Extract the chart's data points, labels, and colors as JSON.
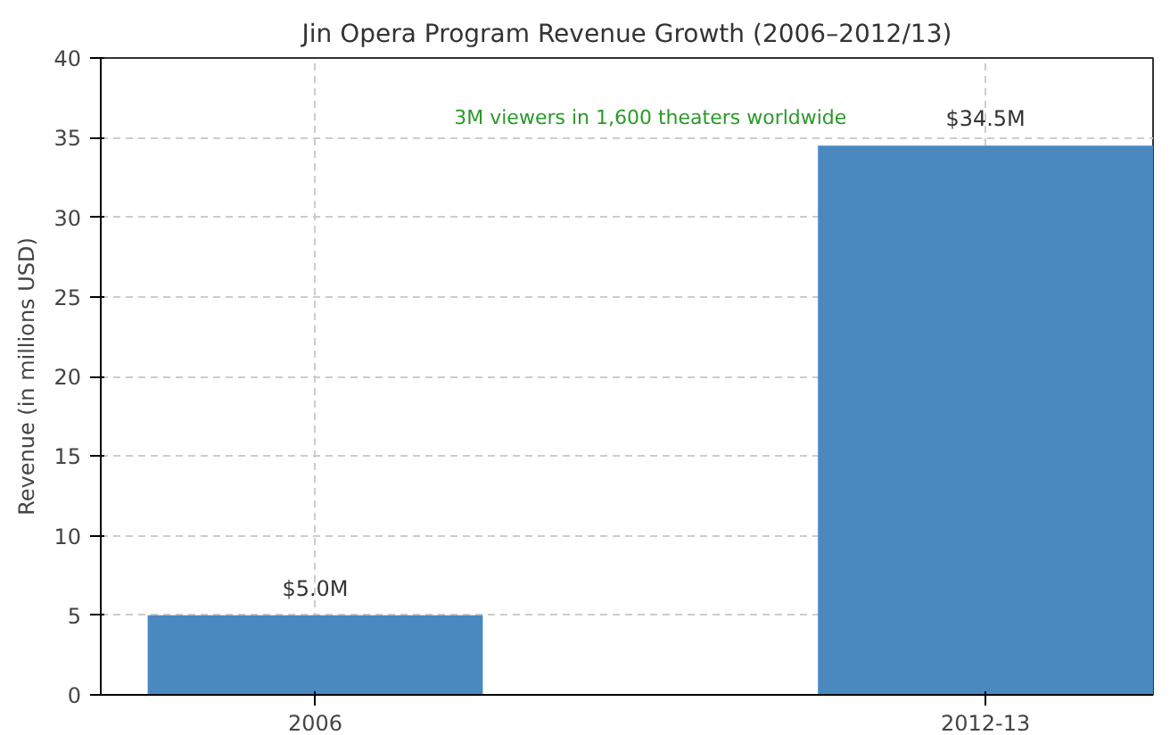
{
  "chart_data": {
    "type": "bar",
    "title": "Jin Opera Program Revenue Growth (2006–2012/13)",
    "ylabel": "Revenue (in millions USD)",
    "categories": [
      "2006",
      "2012-13"
    ],
    "values": [
      5.0,
      34.5
    ],
    "color": "#4a89c0",
    "value_labels": [
      "$5.0M",
      "$34.5M"
    ],
    "ylim": [
      0,
      40
    ],
    "yticks": [
      0,
      5,
      10,
      15,
      20,
      25,
      30,
      35,
      40
    ],
    "grid": true,
    "annotations": [
      "3M viewers in 1,600 theaters worldwide"
    ]
  }
}
